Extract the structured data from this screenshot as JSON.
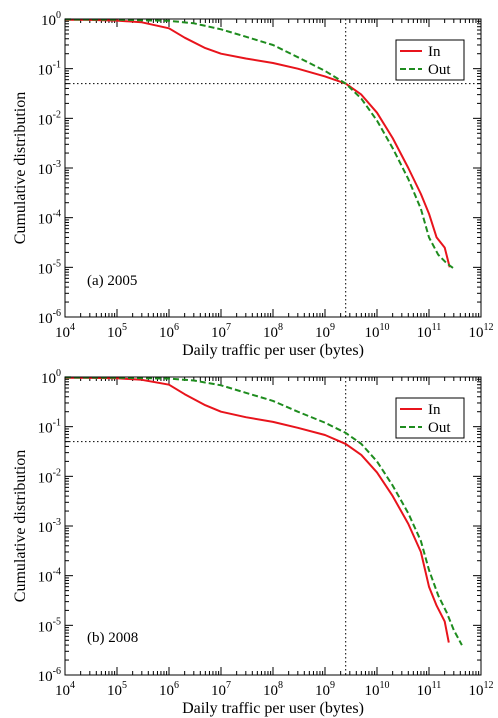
{
  "chart_data": [
    {
      "type": "line",
      "annotation": "(a) 2005",
      "xlabel": "Daily traffic per user (bytes)",
      "ylabel": "Cumulative distribution",
      "x_scale": "log",
      "y_scale": "log",
      "xlim": [
        10000.0,
        1000000000000.0
      ],
      "ylim": [
        1e-06,
        1
      ],
      "x_tick_exponents": [
        "4",
        "5",
        "6",
        "7",
        "8",
        "9",
        "10",
        "11",
        "12"
      ],
      "y_tick_exponents": [
        "0",
        "-1",
        "-2",
        "-3",
        "-4",
        "-5",
        "-6"
      ],
      "tick_base": "10",
      "grid": false,
      "legend_position": "top-right",
      "reference_lines": {
        "x": 2500000000.0,
        "y": 0.05,
        "style": "dotted"
      },
      "series": [
        {
          "name": "In",
          "color": "#e8141c",
          "dash": "solid",
          "points": [
            [
              10000.0,
              0.97
            ],
            [
              30000.0,
              0.96
            ],
            [
              100000.0,
              0.93
            ],
            [
              300000.0,
              0.86
            ],
            [
              1000000.0,
              0.65
            ],
            [
              2000000.0,
              0.42
            ],
            [
              5000000.0,
              0.26
            ],
            [
              10000000.0,
              0.2
            ],
            [
              30000000.0,
              0.16
            ],
            [
              100000000.0,
              0.13
            ],
            [
              300000000.0,
              0.1
            ],
            [
              1000000000.0,
              0.07
            ],
            [
              2500000000.0,
              0.05
            ],
            [
              5000000000.0,
              0.03
            ],
            [
              10000000000.0,
              0.013
            ],
            [
              20000000000.0,
              0.004
            ],
            [
              40000000000.0,
              0.001
            ],
            [
              70000000000.0,
              0.0003
            ],
            [
              100000000000.0,
              0.00012
            ],
            [
              140000000000.0,
              4e-05
            ],
            [
              200000000000.0,
              2.5e-05
            ],
            [
              250000000000.0,
              1e-05
            ]
          ]
        },
        {
          "name": "Out",
          "color": "#1e8c1e",
          "dash": "dashed",
          "points": [
            [
              10000.0,
              0.98
            ],
            [
              100000.0,
              0.97
            ],
            [
              1000000.0,
              0.92
            ],
            [
              3000000.0,
              0.82
            ],
            [
              10000000.0,
              0.62
            ],
            [
              30000000.0,
              0.44
            ],
            [
              100000000.0,
              0.3
            ],
            [
              300000000.0,
              0.17
            ],
            [
              1000000000.0,
              0.09
            ],
            [
              2500000000.0,
              0.05
            ],
            [
              5000000000.0,
              0.025
            ],
            [
              10000000000.0,
              0.009
            ],
            [
              20000000000.0,
              0.0025
            ],
            [
              40000000000.0,
              0.0006
            ],
            [
              70000000000.0,
              0.00015
            ],
            [
              100000000000.0,
              4e-05
            ],
            [
              150000000000.0,
              1.8e-05
            ],
            [
              220000000000.0,
              1.2e-05
            ],
            [
              320000000000.0,
              9e-06
            ]
          ]
        }
      ]
    },
    {
      "type": "line",
      "annotation": "(b) 2008",
      "xlabel": "Daily traffic per user (bytes)",
      "ylabel": "Cumulative distribution",
      "x_scale": "log",
      "y_scale": "log",
      "xlim": [
        10000.0,
        1000000000000.0
      ],
      "ylim": [
        1e-06,
        1
      ],
      "x_tick_exponents": [
        "4",
        "5",
        "6",
        "7",
        "8",
        "9",
        "10",
        "11",
        "12"
      ],
      "y_tick_exponents": [
        "0",
        "-1",
        "-2",
        "-3",
        "-4",
        "-5",
        "-6"
      ],
      "tick_base": "10",
      "grid": false,
      "legend_position": "top-right",
      "reference_lines": {
        "x": 2500000000.0,
        "y": 0.05,
        "style": "dotted"
      },
      "series": [
        {
          "name": "In",
          "color": "#e8141c",
          "dash": "solid",
          "points": [
            [
              10000.0,
              0.97
            ],
            [
              30000.0,
              0.96
            ],
            [
              100000.0,
              0.94
            ],
            [
              300000.0,
              0.88
            ],
            [
              1000000.0,
              0.7
            ],
            [
              2000000.0,
              0.45
            ],
            [
              5000000.0,
              0.27
            ],
            [
              10000000.0,
              0.2
            ],
            [
              30000000.0,
              0.155
            ],
            [
              100000000.0,
              0.125
            ],
            [
              300000000.0,
              0.095
            ],
            [
              1000000000.0,
              0.068
            ],
            [
              2500000000.0,
              0.045
            ],
            [
              5000000000.0,
              0.027
            ],
            [
              10000000000.0,
              0.012
            ],
            [
              20000000000.0,
              0.004
            ],
            [
              40000000000.0,
              0.0011
            ],
            [
              70000000000.0,
              0.0003
            ],
            [
              100000000000.0,
              6e-05
            ],
            [
              140000000000.0,
              2.5e-05
            ],
            [
              200000000000.0,
              1.2e-05
            ],
            [
              240000000000.0,
              4.5e-06
            ]
          ]
        },
        {
          "name": "Out",
          "color": "#1e8c1e",
          "dash": "dashed",
          "points": [
            [
              10000.0,
              0.98
            ],
            [
              100000.0,
              0.97
            ],
            [
              1000000.0,
              0.93
            ],
            [
              3000000.0,
              0.85
            ],
            [
              10000000.0,
              0.68
            ],
            [
              30000000.0,
              0.48
            ],
            [
              100000000.0,
              0.33
            ],
            [
              300000000.0,
              0.2
            ],
            [
              1000000000.0,
              0.12
            ],
            [
              2500000000.0,
              0.075
            ],
            [
              5000000000.0,
              0.045
            ],
            [
              10000000000.0,
              0.02
            ],
            [
              20000000000.0,
              0.0065
            ],
            [
              40000000000.0,
              0.0018
            ],
            [
              70000000000.0,
              0.0005
            ],
            [
              100000000000.0,
              0.00013
            ],
            [
              150000000000.0,
              4e-05
            ],
            [
              220000000000.0,
              1.8e-05
            ],
            [
              300000000000.0,
              8e-06
            ],
            [
              430000000000.0,
              4e-06
            ]
          ]
        }
      ]
    }
  ]
}
